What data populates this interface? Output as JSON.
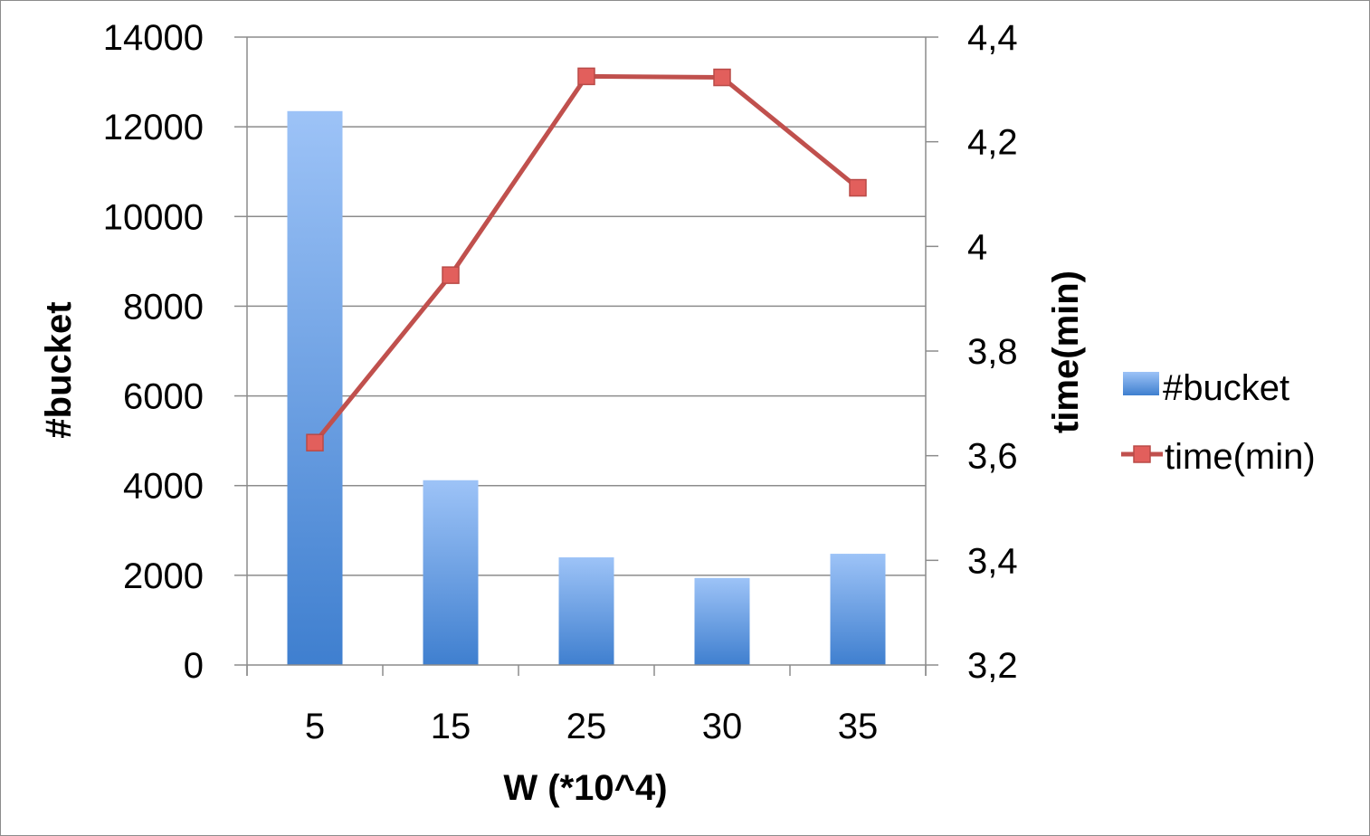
{
  "chart_data": {
    "type": "bar",
    "categories": [
      "5",
      "15",
      "25",
      "30",
      "35"
    ],
    "xlabel": "W (*10^4)",
    "series": [
      {
        "name": "#bucket",
        "type": "bar",
        "axis": "left",
        "values": [
          12350,
          4120,
          2400,
          1940,
          2480
        ],
        "color": "#4f8fdd"
      },
      {
        "name": "time(min)",
        "type": "line",
        "axis": "right",
        "values": [
          3.625,
          3.945,
          4.325,
          4.323,
          4.112
        ],
        "color": "#c0504d"
      }
    ],
    "y_left": {
      "label": "#bucket",
      "lim": [
        0,
        14000
      ],
      "ticks": [
        0,
        2000,
        4000,
        6000,
        8000,
        10000,
        12000,
        14000
      ],
      "tick_labels": [
        "0",
        "2000",
        "4000",
        "6000",
        "8000",
        "10000",
        "12000",
        "14000"
      ]
    },
    "y_right": {
      "label": "time(min)",
      "lim": [
        3.2,
        4.4
      ],
      "ticks": [
        3.2,
        3.4,
        3.6,
        3.8,
        4.0,
        4.2,
        4.4
      ],
      "tick_labels": [
        "3,2",
        "3,4",
        "3,6",
        "3,8",
        "4",
        "4,2",
        "4,4"
      ]
    },
    "grid": true,
    "legend_position": "right"
  }
}
